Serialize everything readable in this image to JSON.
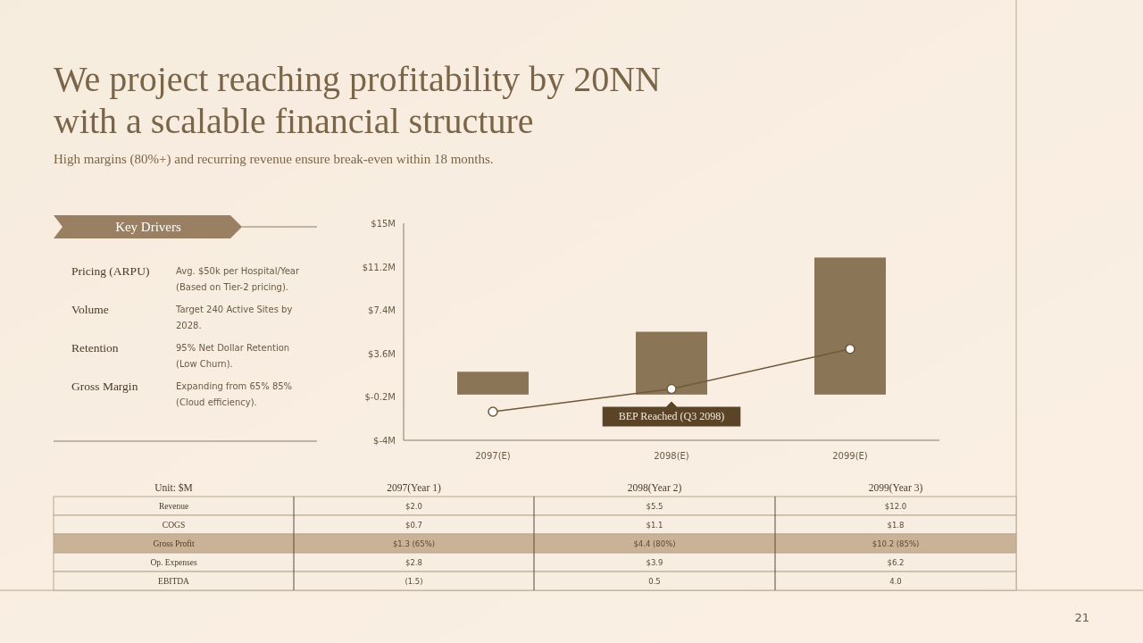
{
  "chart_data": [
    {
      "type": "bar",
      "title": "We project reaching profitability by 20NN with a scalable financial structure",
      "subtitle": "High margins (80%+) and recurring revenue ensure break-even within 18 months.",
      "categories": [
        "2097(E)",
        "2098(E)",
        "2099(E)"
      ],
      "series": [
        {
          "type": "bar",
          "color": "#8b7557",
          "values": [
            2.0,
            5.5,
            12.0
          ]
        },
        {
          "type": "line",
          "color": "#6e5a38",
          "values": [
            -1.5,
            0.5,
            4.0
          ],
          "marker": "circle"
        }
      ],
      "ylim": [
        -4,
        15
      ],
      "yticks": [
        {
          "value": -4,
          "label": "$-4M"
        },
        {
          "value": -0.2,
          "label": "$-0.2M"
        },
        {
          "value": 3.6,
          "label": "$3.6M"
        },
        {
          "value": 7.4,
          "label": "$7.4M"
        },
        {
          "value": 11.2,
          "label": "$11.2M"
        },
        {
          "value": 15,
          "label": "$15M"
        }
      ],
      "grid": false,
      "annotations": [
        {
          "text": "BEP Reached (Q3 2098)",
          "x": "2098(E)",
          "y": 0.5
        }
      ]
    },
    {
      "type": "other",
      "title": "Key Drivers",
      "categories": [
        "Pricing (ARPU)",
        "Volume",
        "Retention",
        "Gross Margin"
      ],
      "annotations": [
        "Avg. $50k per Hospital/Year (Based on Tier-2 pricing).",
        "Target 240 Active Sites by 2028.",
        "95% Net Dollar Retention (Low Churn).",
        "Expanding from 65% 85% (Cloud efficiency)."
      ]
    },
    {
      "type": "other",
      "title": "Unit: $M",
      "categories": [
        "2097(Year 1)",
        "2098(Year 2)",
        "2099(Year 3)"
      ],
      "y_categories": [
        "Revenue",
        "COGS",
        "Gross Profit",
        "Op. Expenses",
        "EBITDA"
      ],
      "colors": [
        "#f8ede1",
        "#f8ede1",
        "#c9b296",
        "#f8ede1",
        "#f8ede1"
      ],
      "cell_labels": [
        [
          "$2.0",
          "$5.5",
          "$12.0"
        ],
        [
          "$0.7",
          "$1.1",
          "$1.8"
        ],
        [
          "$1.3 (65%)",
          "$4.4 (80%)",
          "$10.2 (85%)"
        ],
        [
          "$2.8",
          "$3.9",
          "$6.2"
        ],
        [
          "(1.5)",
          "0.5",
          "4.0"
        ]
      ],
      "annotations": [
        "21"
      ]
    }
  ]
}
